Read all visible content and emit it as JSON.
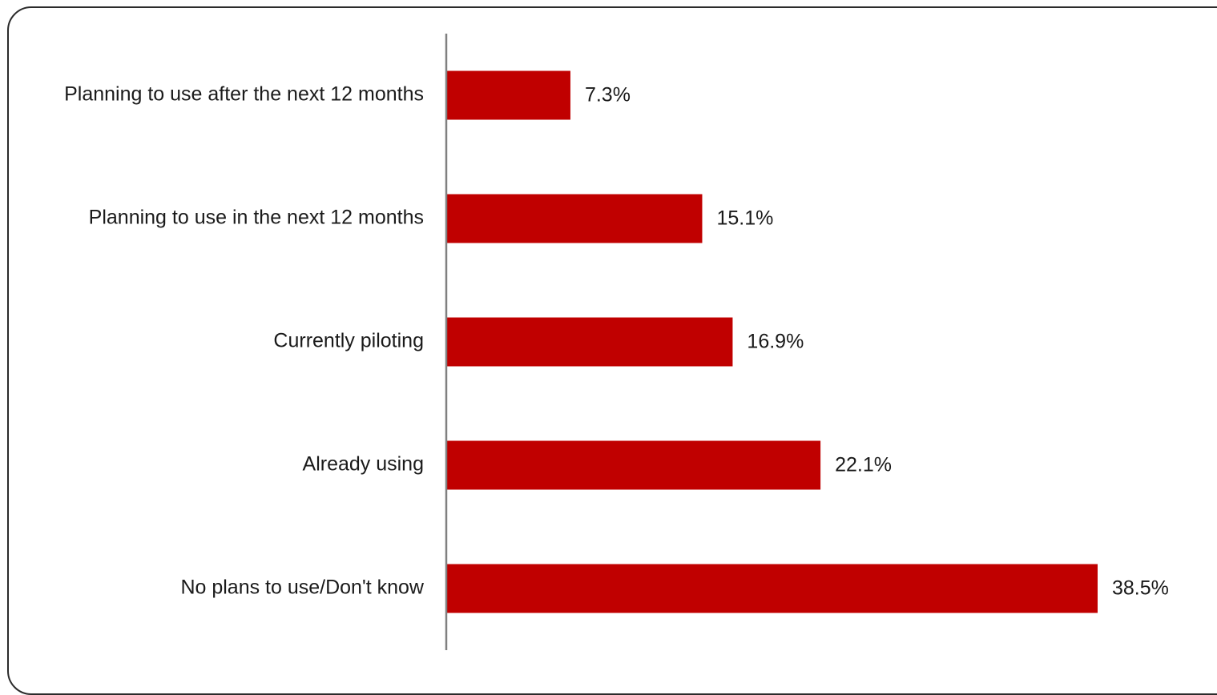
{
  "chart_data": {
    "type": "bar",
    "orientation": "horizontal",
    "title": "",
    "xlabel": "",
    "ylabel": "",
    "categories": [
      "Planning to use after the next 12 months",
      "Planning to use in the next 12 months",
      "Currently piloting",
      "Already using",
      "No plans to use/Don't know"
    ],
    "values": [
      7.3,
      15.1,
      16.9,
      22.1,
      38.5
    ],
    "value_labels": [
      "7.3%",
      "15.1%",
      "16.9%",
      "22.1%",
      "38.5%"
    ],
    "xlim": [
      0,
      40
    ],
    "grid": false,
    "legend": "none",
    "bar_color": "#c00000",
    "axis_color": "#808080"
  }
}
